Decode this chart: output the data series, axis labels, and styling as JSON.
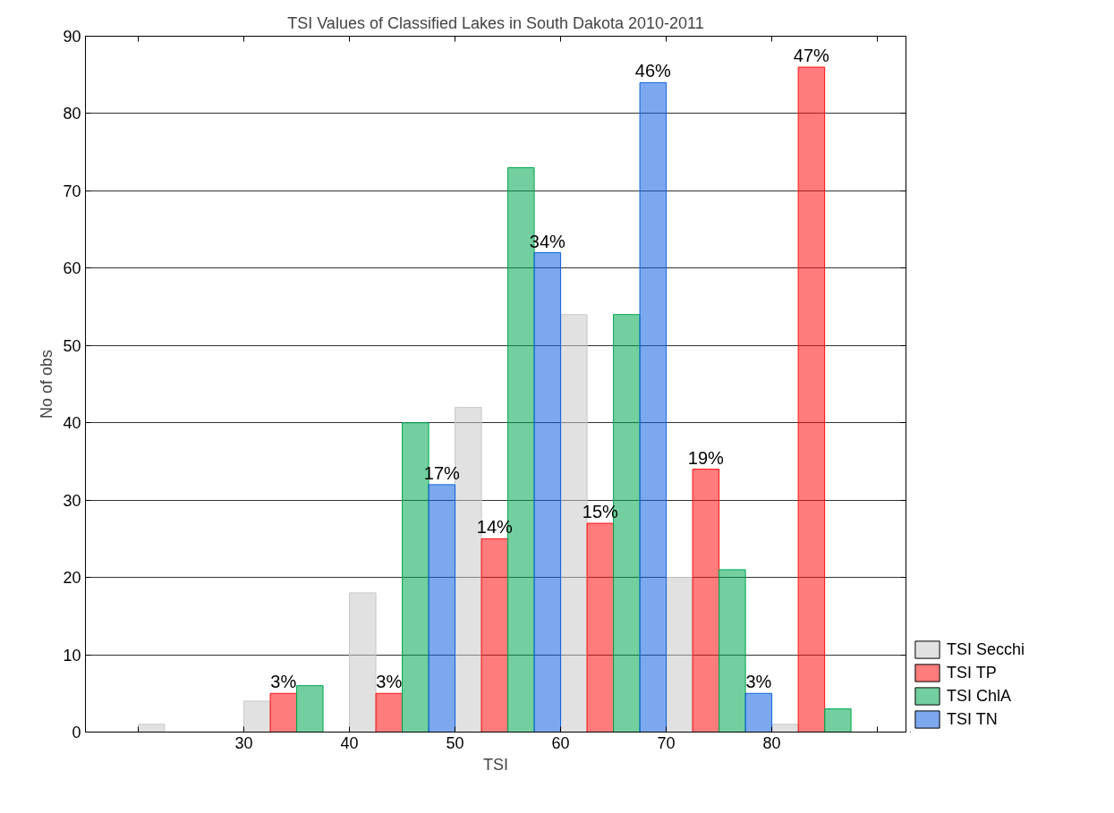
{
  "chart_data": {
    "type": "bar",
    "title": "TSI Values of Classified Lakes in South Dakota 2010-2011",
    "xlabel": "TSI",
    "ylabel": "No of obs",
    "xlim": [
      15,
      92.7
    ],
    "xticks": [
      {
        "value": 20,
        "label": null
      },
      30,
      40,
      50,
      60,
      70,
      80,
      {
        "value": 90,
        "label": null
      }
    ],
    "ylim": [
      0,
      90
    ],
    "yticks": [
      0,
      10,
      20,
      30,
      40,
      50,
      60,
      70,
      80,
      90
    ],
    "grid": "y",
    "legend": "bottom right",
    "series": [
      {
        "name": "TSI Secchi",
        "color": "#c8c8c8",
        "x": [
          21.25,
          31.25,
          41.25,
          51.25,
          61.25,
          71.25,
          81.25
        ],
        "values": [
          1,
          4,
          18,
          42,
          54,
          20,
          1
        ]
      },
      {
        "name": "TSI TP",
        "color": "#ff1010",
        "x": [
          33.75,
          43.75,
          53.75,
          63.75,
          73.75,
          83.75
        ],
        "values": [
          5,
          5,
          25,
          27,
          34,
          86
        ]
      },
      {
        "name": "TSI ChlA",
        "color": "#00a850",
        "x": [
          36.25,
          46.25,
          56.25,
          66.25,
          76.25,
          86.25
        ],
        "values": [
          6,
          40,
          73,
          54,
          21,
          3
        ]
      },
      {
        "name": "TSI TN",
        "color": "#1060e0",
        "x": [
          48.75,
          58.75,
          68.75,
          78.75
        ],
        "values": [
          32,
          62,
          84,
          5
        ]
      }
    ],
    "annotations": [
      {
        "text": "3%",
        "x": 33.75,
        "y": 5
      },
      {
        "text": "3%",
        "x": 43.75,
        "y": 5
      },
      {
        "text": "14%",
        "x": 53.75,
        "y": 25
      },
      {
        "text": "15%",
        "x": 63.75,
        "y": 27
      },
      {
        "text": "19%",
        "x": 73.75,
        "y": 34
      },
      {
        "text": "47%",
        "x": 83.75,
        "y": 86
      },
      {
        "text": "17%",
        "x": 48.75,
        "y": 32
      },
      {
        "text": "34%",
        "x": 58.75,
        "y": 62
      },
      {
        "text": "46%",
        "x": 68.75,
        "y": 84
      },
      {
        "text": "3%",
        "x": 78.75,
        "y": 5
      }
    ]
  }
}
